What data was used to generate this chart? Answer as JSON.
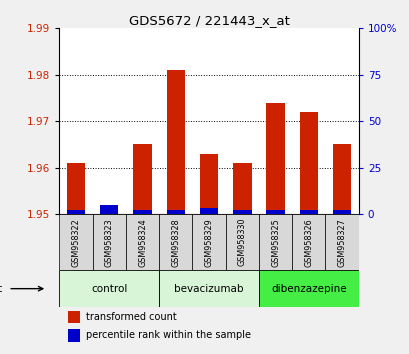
{
  "title": "GDS5672 / 221443_x_at",
  "samples": [
    "GSM958322",
    "GSM958323",
    "GSM958324",
    "GSM958328",
    "GSM958329",
    "GSM958330",
    "GSM958325",
    "GSM958326",
    "GSM958327"
  ],
  "red_values": [
    1.961,
    1.951,
    1.965,
    1.981,
    1.963,
    1.961,
    1.974,
    1.972,
    1.965
  ],
  "blue_pct": [
    2,
    5,
    2,
    2,
    3,
    2,
    2,
    2,
    2
  ],
  "ylim_left": [
    1.95,
    1.99
  ],
  "ylim_right": [
    0,
    100
  ],
  "yticks_left": [
    1.95,
    1.96,
    1.97,
    1.98,
    1.99
  ],
  "yticks_right": [
    0,
    25,
    50,
    75,
    100
  ],
  "ytick_labels_left": [
    "1.95",
    "1.96",
    "1.97",
    "1.98",
    "1.99"
  ],
  "ytick_labels_right": [
    "0",
    "25",
    "50",
    "75",
    "100%"
  ],
  "bar_bottom": 1.95,
  "groups": [
    {
      "label": "control",
      "start": 0,
      "end": 3,
      "color": "#d8f5d8"
    },
    {
      "label": "bevacizumab",
      "start": 3,
      "end": 6,
      "color": "#d8f5d8"
    },
    {
      "label": "dibenzazepine",
      "start": 6,
      "end": 9,
      "color": "#44ee44"
    }
  ],
  "red_color": "#cc2200",
  "blue_color": "#0000cc",
  "bar_width": 0.55,
  "legend_red": "transformed count",
  "legend_blue": "percentile rank within the sample",
  "bg_color": "#f0f0f0",
  "plot_bg": "#ffffff",
  "sample_cell_color": "#d8d8d8",
  "grid_color": "#000000"
}
